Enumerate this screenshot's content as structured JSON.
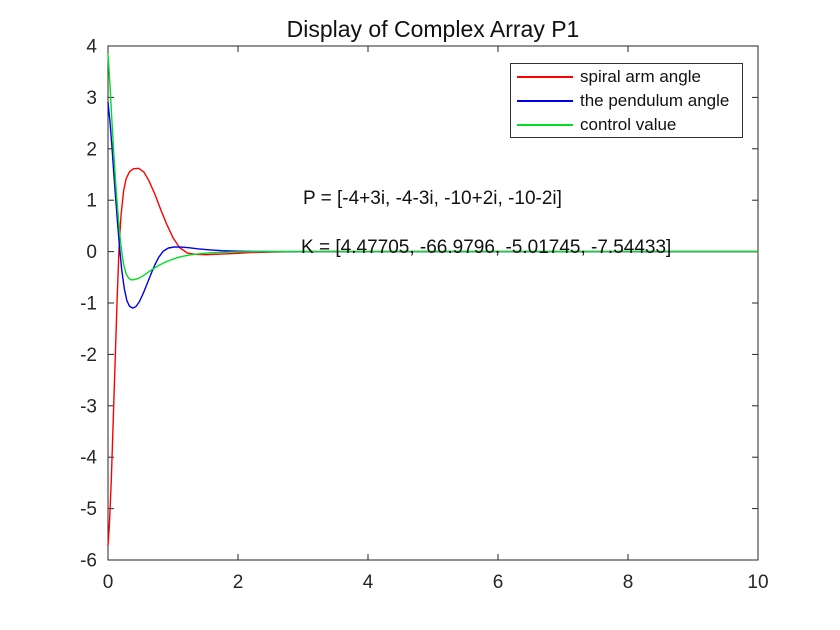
{
  "colors": {
    "background": "#ffffff",
    "axis": "#262626",
    "tick_text": "#262626",
    "text": "#111111"
  },
  "chart_data": {
    "type": "line",
    "title": "Display of Complex Array P1",
    "xlabel": "",
    "ylabel": "",
    "xlim": [
      0,
      10
    ],
    "ylim": [
      -6,
      4
    ],
    "x_ticks": [
      0,
      2,
      4,
      6,
      8,
      10
    ],
    "y_ticks": [
      -6,
      -5,
      -4,
      -3,
      -2,
      -1,
      0,
      1,
      2,
      3,
      4
    ],
    "grid": false,
    "legend_position": "top-right",
    "series": [
      {
        "name": "spiral arm angle",
        "color": "#ff0000",
        "x": [
          0,
          0.02,
          0.05,
          0.08,
          0.11,
          0.14,
          0.17,
          0.2,
          0.24,
          0.28,
          0.33,
          0.39,
          0.47,
          0.55,
          0.63,
          0.72,
          0.81,
          0.9,
          1.0,
          1.1,
          1.22,
          1.35,
          1.5,
          1.7,
          1.95,
          2.2,
          2.5,
          2.8,
          3.2,
          4.0,
          10
        ],
        "y": [
          -5.72,
          -5.35,
          -4.45,
          -3.3,
          -2.1,
          -0.95,
          0.05,
          0.7,
          1.18,
          1.42,
          1.55,
          1.61,
          1.62,
          1.55,
          1.38,
          1.12,
          0.82,
          0.54,
          0.27,
          0.08,
          -0.03,
          -0.055,
          -0.06,
          -0.05,
          -0.035,
          -0.02,
          -0.008,
          -0.002,
          0,
          0,
          0
        ]
      },
      {
        "name": "the pendulum angle",
        "color": "#0000ee",
        "x": [
          0,
          0.03,
          0.06,
          0.09,
          0.12,
          0.15,
          0.18,
          0.21,
          0.25,
          0.29,
          0.33,
          0.38,
          0.43,
          0.48,
          0.54,
          0.6,
          0.66,
          0.72,
          0.78,
          0.85,
          0.93,
          1.02,
          1.12,
          1.24,
          1.38,
          1.55,
          1.75,
          2.0,
          2.3,
          2.7,
          4.0,
          10
        ],
        "y": [
          2.9,
          2.52,
          2.05,
          1.52,
          1.0,
          0.5,
          0.05,
          -0.35,
          -0.72,
          -0.95,
          -1.06,
          -1.1,
          -1.07,
          -0.98,
          -0.82,
          -0.63,
          -0.44,
          -0.26,
          -0.11,
          0.01,
          0.07,
          0.09,
          0.088,
          0.075,
          0.055,
          0.035,
          0.018,
          0.007,
          0.002,
          0,
          0,
          0
        ]
      },
      {
        "name": "control value",
        "color": "#00dd22",
        "x": [
          0,
          0.03,
          0.06,
          0.09,
          0.12,
          0.15,
          0.18,
          0.21,
          0.24,
          0.28,
          0.32,
          0.36,
          0.41,
          0.47,
          0.54,
          0.62,
          0.7,
          0.8,
          0.9,
          1.0,
          1.12,
          1.26,
          1.42,
          1.6,
          1.8,
          2.05,
          2.4,
          3.0,
          10
        ],
        "y": [
          3.85,
          3.22,
          2.55,
          1.9,
          1.3,
          0.78,
          0.35,
          0.0,
          -0.25,
          -0.44,
          -0.52,
          -0.55,
          -0.545,
          -0.52,
          -0.47,
          -0.4,
          -0.33,
          -0.255,
          -0.195,
          -0.145,
          -0.1,
          -0.065,
          -0.04,
          -0.022,
          -0.011,
          -0.004,
          0,
          0,
          0
        ]
      }
    ],
    "annotations": [
      {
        "text": "P = [-4+3i, -4-3i, -10+2i, -10-2i]",
        "x": 3.0,
        "y": 1.0
      },
      {
        "text": "K = [4.47705, -66.9796, -5.01745, -7.54433]",
        "x": 2.97,
        "y": 0.05
      }
    ]
  }
}
